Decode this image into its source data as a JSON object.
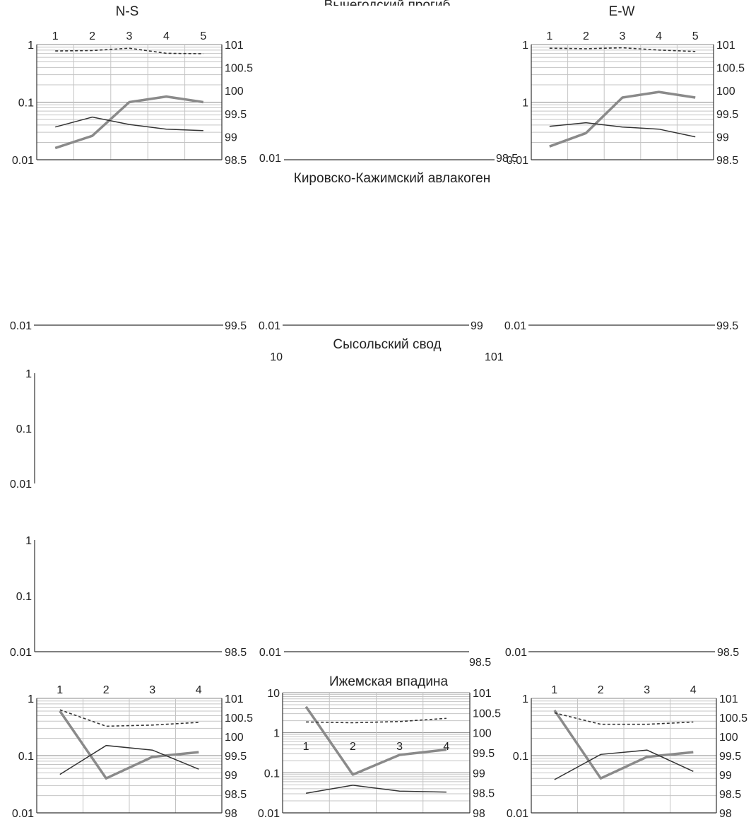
{
  "figure": {
    "row_titles": [
      "Вычегодский прогиб",
      "Кировско-Кажимский авлакоген",
      "Сысольский свод",
      "Ижемская впадина"
    ],
    "column_titles": [
      "N-S",
      "E-W"
    ]
  },
  "colors": {
    "series_thick": "#8a8a8a",
    "series_thin": "#333333",
    "series_dashed": "#333333"
  },
  "chart_data": [
    {
      "name": "N-S, row 1",
      "type": "line",
      "title": "N-S",
      "categories": [
        "1",
        "2",
        "3",
        "4",
        "5"
      ],
      "categories_position": "top",
      "y_left": {
        "scale": "log",
        "range": [
          0.01,
          1
        ],
        "ticks": [
          "0.01",
          "0.1",
          "1"
        ]
      },
      "y_right": {
        "range": [
          98.5,
          101
        ],
        "ticks": [
          "98.5",
          "99",
          "99.5",
          "100",
          "100.5",
          "101"
        ]
      },
      "series": [
        {
          "name": "thick gray",
          "axis": "left",
          "style": "thick",
          "values": [
            0.016,
            0.026,
            0.1,
            0.125,
            0.1
          ]
        },
        {
          "name": "thin dark",
          "axis": "left",
          "style": "thin",
          "values": [
            0.037,
            0.055,
            0.041,
            0.034,
            0.032
          ]
        },
        {
          "name": "dashed",
          "axis": "right",
          "style": "dashed",
          "values": [
            100.86,
            100.87,
            100.92,
            100.81,
            100.8
          ]
        }
      ]
    },
    {
      "name": "E-W, row 1",
      "type": "line",
      "title": "E-W",
      "categories": [
        "1",
        "2",
        "3",
        "4",
        "5"
      ],
      "categories_position": "top",
      "y_left": {
        "scale": "log",
        "range": [
          0.01,
          1
        ],
        "ticks": [
          "0.01",
          "1",
          "1"
        ]
      },
      "y_right": {
        "range": [
          98.5,
          101
        ],
        "ticks": [
          "98.5",
          "99",
          "99.5",
          "100",
          "100.5",
          "101"
        ]
      },
      "series": [
        {
          "name": "thick gray",
          "axis": "left",
          "style": "thick",
          "values": [
            0.017,
            0.029,
            0.12,
            0.15,
            0.12
          ]
        },
        {
          "name": "thin dark",
          "axis": "left",
          "style": "thin",
          "values": [
            0.038,
            0.044,
            0.037,
            0.034,
            0.025
          ]
        },
        {
          "name": "dashed",
          "axis": "right",
          "style": "dashed",
          "values": [
            100.92,
            100.91,
            100.93,
            100.88,
            100.85
          ]
        }
      ]
    },
    {
      "name": "Вычегодский прогиб, center (blank)",
      "type": "line",
      "title": "Вычегодский прогиб",
      "y_left": {
        "ticks": [
          "0.01"
        ]
      },
      "y_right": {
        "ticks": [
          "98.5"
        ]
      },
      "series": []
    },
    {
      "name": "Кировско-Кажимский авлакоген (blank)",
      "type": "line",
      "title": "Кировско-Кажимский авлакоген",
      "y_left_ticks": [
        "0.01",
        "0.01",
        "0.01"
      ],
      "y_right_ticks": [
        "99.5",
        "99",
        "99.5"
      ],
      "series": []
    },
    {
      "name": "Сысольский свод (blank)",
      "type": "line",
      "title": "Сысольский свод",
      "y_left": {
        "scale": "log",
        "range": [
          0.01,
          1
        ],
        "ticks": [
          "0.01",
          "0.1",
          "1"
        ]
      },
      "center_fragment_ticks": [
        "10",
        "101"
      ],
      "series": []
    },
    {
      "name": "row 4 (blank)",
      "type": "line",
      "y_left": {
        "scale": "log",
        "range": [
          0.01,
          1
        ],
        "ticks": [
          "0.01",
          "0.1",
          "1"
        ]
      },
      "y_right_ticks": [
        "98.5",
        "98.5",
        "98.5"
      ],
      "center_fragment_ticks": [
        "0.01",
        "98.5",
        "0.01"
      ],
      "series": []
    },
    {
      "name": "Ижемская впадина, N-S",
      "type": "line",
      "categories": [
        "1",
        "2",
        "3",
        "4"
      ],
      "categories_position": "top",
      "y_left": {
        "scale": "log",
        "range": [
          0.01,
          1
        ],
        "ticks": [
          "0.01",
          "0.1",
          "1"
        ]
      },
      "y_right": {
        "range": [
          98,
          101
        ],
        "ticks": [
          "98",
          "98.5",
          "99",
          "99.5",
          "100",
          "100.5",
          "101"
        ]
      },
      "series": [
        {
          "name": "thick gray",
          "axis": "left",
          "style": "thick",
          "values": [
            0.6,
            0.04,
            0.095,
            0.115
          ]
        },
        {
          "name": "thin dark",
          "axis": "left",
          "style": "thin",
          "values": [
            0.047,
            0.15,
            0.125,
            0.058
          ]
        },
        {
          "name": "dashed",
          "axis": "right",
          "style": "dashed",
          "values": [
            100.7,
            100.27,
            100.3,
            100.37
          ]
        }
      ]
    },
    {
      "name": "Ижемская впадина, center",
      "type": "line",
      "title": "Ижемская впадина",
      "categories": [
        "1",
        "2",
        "3",
        "4"
      ],
      "categories_position": "middle",
      "y_left": {
        "scale": "log",
        "range": [
          0.01,
          10
        ],
        "ticks": [
          "0.01",
          "0.1",
          "1",
          "10"
        ]
      },
      "y_right": {
        "range": [
          98,
          101
        ],
        "ticks": [
          "98",
          "98.5",
          "99",
          "99.5",
          "100",
          "100.5",
          "101"
        ]
      },
      "series": [
        {
          "name": "thick gray",
          "axis": "left",
          "style": "thick",
          "values": [
            4.5,
            0.09,
            0.28,
            0.38
          ]
        },
        {
          "name": "thin dark",
          "axis": "left",
          "style": "thin",
          "values": [
            0.031,
            0.049,
            0.035,
            0.033
          ]
        },
        {
          "name": "dashed",
          "axis": "right",
          "style": "dashed",
          "values": [
            100.27,
            100.25,
            100.28,
            100.36
          ]
        }
      ]
    },
    {
      "name": "Ижемская впадина, E-W",
      "type": "line",
      "categories": [
        "1",
        "2",
        "3",
        "4"
      ],
      "categories_position": "top",
      "y_left": {
        "scale": "log",
        "range": [
          0.01,
          1
        ],
        "ticks": [
          "0.01",
          "0.1",
          "1"
        ]
      },
      "y_right": {
        "range": [
          98,
          101
        ],
        "ticks": [
          "98",
          "98.5",
          "99",
          "99.5",
          "100",
          "100.5",
          "101"
        ]
      },
      "series": [
        {
          "name": "thick gray",
          "axis": "left",
          "style": "thick",
          "values": [
            0.62,
            0.04,
            0.095,
            0.115
          ]
        },
        {
          "name": "thin dark",
          "axis": "left",
          "style": "thin",
          "values": [
            0.038,
            0.105,
            0.125,
            0.053
          ]
        },
        {
          "name": "dashed",
          "axis": "right",
          "style": "dashed",
          "values": [
            100.62,
            100.32,
            100.32,
            100.38
          ]
        }
      ]
    }
  ]
}
